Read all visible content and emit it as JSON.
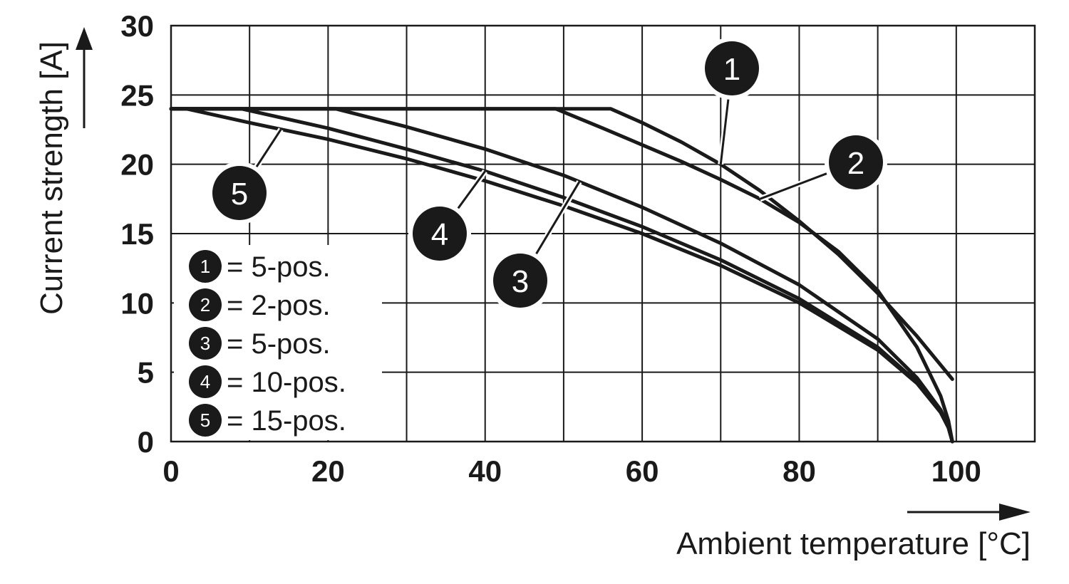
{
  "chart_data": {
    "type": "line",
    "xlabel": "Ambient temperature [°C]",
    "ylabel": "Current strength [A]",
    "xlim": [
      0,
      110
    ],
    "ylim": [
      0,
      30
    ],
    "x_ticks": [
      "0",
      "20",
      "40",
      "60",
      "80",
      "100"
    ],
    "y_ticks": [
      "0",
      "5",
      "10",
      "15",
      "20",
      "25",
      "30"
    ],
    "grid": true,
    "legend_position": "lower-left",
    "series": [
      {
        "marker": "1",
        "name": "= 5-pos.",
        "x": [
          0,
          56,
          60,
          65,
          70,
          75,
          80,
          85,
          90,
          95,
          99.5
        ],
        "y": [
          24,
          24,
          23.0,
          21.6,
          20.0,
          18.1,
          15.9,
          13.5,
          10.7,
          7.6,
          4.5
        ]
      },
      {
        "marker": "2",
        "name": "= 2-pos.",
        "x": [
          0,
          49,
          55,
          60,
          65,
          70,
          75,
          80,
          85,
          90,
          95,
          98,
          99,
          99.5
        ],
        "y": [
          24,
          24,
          22.6,
          21.4,
          20.2,
          18.9,
          17.5,
          15.8,
          13.7,
          10.9,
          6.8,
          3.3,
          1.5,
          0
        ]
      },
      {
        "marker": "3",
        "name": "= 5-pos.",
        "x": [
          0,
          21,
          30,
          40,
          50,
          60,
          70,
          80,
          90,
          95,
          98,
          99,
          99.5
        ],
        "y": [
          24,
          24,
          22.7,
          21.1,
          19.2,
          16.9,
          14.3,
          11.3,
          7.4,
          4.6,
          2.3,
          1.1,
          0
        ]
      },
      {
        "marker": "4",
        "name": "= 10-pos.",
        "x": [
          0,
          9,
          20,
          30,
          40,
          50,
          60,
          70,
          80,
          90,
          95,
          98,
          99,
          99.5
        ],
        "y": [
          24,
          24,
          22.6,
          21.1,
          19.5,
          17.6,
          15.5,
          13.1,
          10.3,
          6.8,
          4.3,
          2.2,
          1.0,
          0
        ]
      },
      {
        "marker": "5",
        "name": "= 15-pos.",
        "x": [
          0,
          2,
          10,
          20,
          30,
          40,
          50,
          60,
          70,
          80,
          90,
          95,
          98,
          99,
          99.5
        ],
        "y": [
          24,
          24,
          23.0,
          21.8,
          20.4,
          18.8,
          17.0,
          15.0,
          12.7,
          10.0,
          6.6,
          4.2,
          2.1,
          1.0,
          0
        ]
      }
    ]
  },
  "colors": {
    "line": "#1a1a1a",
    "grid": "#1a1a1a",
    "background": "#ffffff"
  },
  "icons": {
    "x_axis_arrow": "right-arrow-icon",
    "y_axis_arrow": "up-arrow-icon"
  }
}
